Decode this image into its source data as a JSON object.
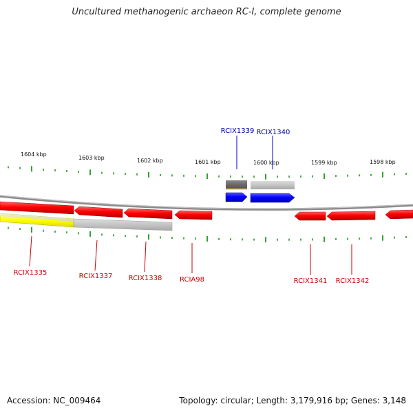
{
  "title": "Uncultured methanogenic archaeon RC-I, complete genome",
  "accession": "Accession: NC_009464",
  "summary": "Topology: circular; Length: 3,179,916 bp; Genes: 3,148",
  "colors": {
    "forward_gene": "#0000ff",
    "forward_label": "#0000aa",
    "reverse_gene": "#ff0000",
    "reverse_label": "#cc0000",
    "tick": "#008800",
    "backbone": "#888888"
  },
  "scale_labels": [
    "1604 kbp",
    "1603 kbp",
    "1602 kbp",
    "1601 kbp",
    "1600 kbp",
    "1599 kbp",
    "1598 kbp"
  ],
  "forward_genes": [
    {
      "label": "RCIX1339"
    },
    {
      "label": "RCIX1340"
    }
  ],
  "reverse_genes": [
    {
      "label": "RCIX1335"
    },
    {
      "label": "RCIX1337"
    },
    {
      "label": "RCIX1338"
    },
    {
      "label": "RCIA98"
    },
    {
      "label": "RCIX1341"
    },
    {
      "label": "RCIX1342"
    }
  ]
}
